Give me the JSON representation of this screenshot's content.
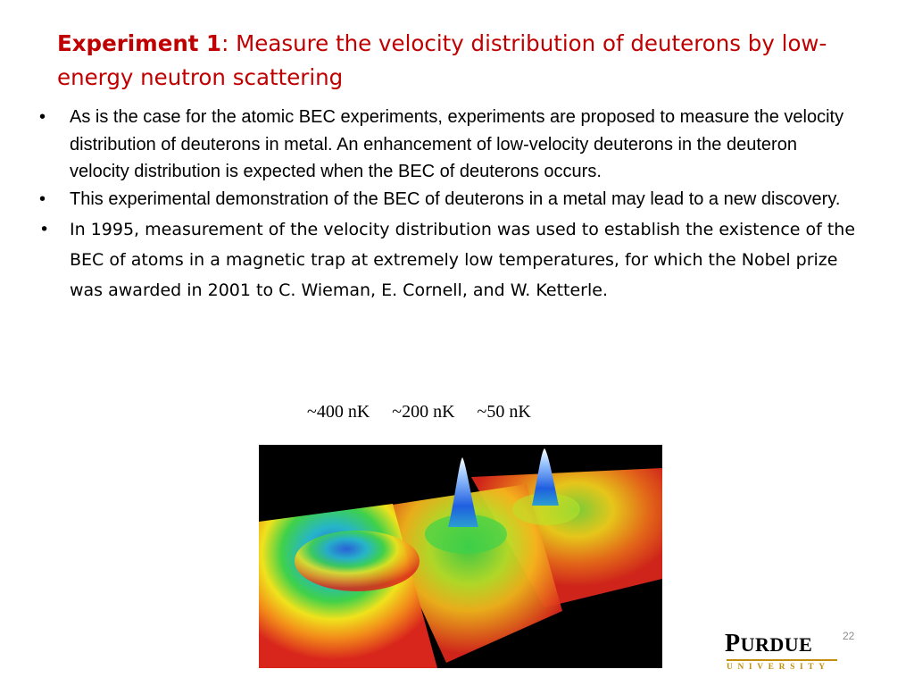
{
  "title": {
    "bold": "Experiment 1",
    "rest": ": Measure the velocity distribution of deuterons by low-energy neutron scattering"
  },
  "bullets": [
    "As is the case for the atomic BEC experiments, experiments are proposed to measure the velocity distribution of deuterons in metal. An enhancement of low-velocity deuterons in the deuteron velocity distribution is expected when the BEC of deuterons occurs.",
    "This experimental demonstration of the BEC of deuterons in a metal may lead to a new discovery.",
    " In 1995, measurement of the velocity distribution was used to establish the existence of the BEC of atoms in a magnetic trap at extremely low temperatures, for which the Nobel  prize was awarded in 2001 to  C. Wieman, E. Cornell, and W. Ketterle."
  ],
  "bullet_symbol": "•",
  "temperature_labels": "~400 nK     ~200 nK     ~50 nK",
  "logo": {
    "word_initial": "P",
    "word_rest": "URDUE",
    "subtitle": "UNIVERSITY",
    "accent_color": "#c28e0e"
  },
  "page_number": "22",
  "colors": {
    "title": "#c00000",
    "figure_background": "#000000"
  }
}
